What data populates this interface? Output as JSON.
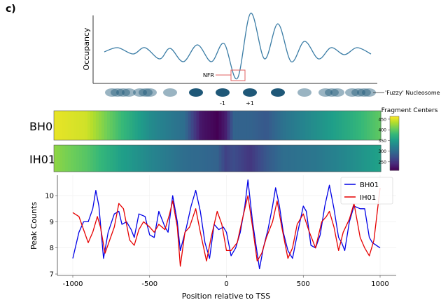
{
  "panel_label": "c)",
  "diagram": {
    "ylabel": "Occupancy",
    "nfr_label": "NFR",
    "minus_one_label": "-1",
    "plus_one_label": "+1",
    "fuzzy_label": "'Fuzzy' Nucleosome",
    "curve_color": "#3a7ca5",
    "nucleosome_color": "#1f5878",
    "nfr_box_color": "#e06060"
  },
  "chart_data": [
    {
      "type": "heatmap",
      "rows": [
        "BH01",
        "IH01"
      ],
      "x": [
        -1000,
        -800,
        -600,
        -400,
        -200,
        -100,
        0,
        50,
        100,
        200,
        300,
        400,
        600,
        800,
        1000
      ],
      "values": [
        [
          455,
          445,
          385,
          330,
          300,
          225,
          210,
          230,
          290,
          290,
          280,
          305,
          335,
          365,
          400
        ],
        [
          420,
          395,
          355,
          325,
          300,
          295,
          290,
          260,
          270,
          250,
          280,
          300,
          310,
          330,
          355
        ]
      ],
      "colormap": "viridis",
      "colorbar": {
        "title": "Fragment Centers",
        "range": [
          210,
          463
        ],
        "ticks": [
          250,
          300,
          350,
          400,
          450
        ]
      }
    },
    {
      "type": "line",
      "xlabel": "Position relative to TSS",
      "ylabel": "Peak Counts",
      "xlim": [
        -1050,
        1050
      ],
      "ylim": [
        7,
        10.75
      ],
      "xticks": [
        -1000,
        -500,
        0,
        500,
        1000
      ],
      "yticks": [
        7,
        8,
        9,
        10
      ],
      "grid": true,
      "legend": "top-right",
      "series": [
        {
          "name": "BH01",
          "color": "#0000e6",
          "points": [
            [
              -1000,
              7.6
            ],
            [
              -960,
              8.6
            ],
            [
              -930,
              9.0
            ],
            [
              -900,
              9.0
            ],
            [
              -870,
              9.5
            ],
            [
              -850,
              10.2
            ],
            [
              -830,
              9.6
            ],
            [
              -800,
              7.6
            ],
            [
              -770,
              8.6
            ],
            [
              -730,
              9.3
            ],
            [
              -700,
              9.4
            ],
            [
              -680,
              8.9
            ],
            [
              -650,
              9.0
            ],
            [
              -620,
              8.7
            ],
            [
              -600,
              8.4
            ],
            [
              -570,
              9.3
            ],
            [
              -530,
              9.2
            ],
            [
              -500,
              8.5
            ],
            [
              -470,
              8.4
            ],
            [
              -440,
              9.4
            ],
            [
              -400,
              8.8
            ],
            [
              -380,
              8.6
            ],
            [
              -350,
              10.0
            ],
            [
              -320,
              9.0
            ],
            [
              -300,
              7.9
            ],
            [
              -260,
              8.8
            ],
            [
              -230,
              9.6
            ],
            [
              -200,
              10.2
            ],
            [
              -170,
              9.4
            ],
            [
              -140,
              8.2
            ],
            [
              -110,
              7.6
            ],
            [
              -80,
              8.9
            ],
            [
              -50,
              8.7
            ],
            [
              -20,
              8.8
            ],
            [
              0,
              8.6
            ],
            [
              30,
              7.7
            ],
            [
              60,
              8.0
            ],
            [
              90,
              8.6
            ],
            [
              120,
              9.6
            ],
            [
              140,
              10.6
            ],
            [
              170,
              9.0
            ],
            [
              200,
              7.8
            ],
            [
              215,
              7.2
            ],
            [
              240,
              8.0
            ],
            [
              270,
              8.7
            ],
            [
              300,
              9.6
            ],
            [
              320,
              10.3
            ],
            [
              345,
              9.6
            ],
            [
              370,
              8.6
            ],
            [
              400,
              7.9
            ],
            [
              430,
              7.6
            ],
            [
              460,
              8.5
            ],
            [
              500,
              9.6
            ],
            [
              520,
              9.4
            ],
            [
              550,
              8.1
            ],
            [
              580,
              8.0
            ],
            [
              610,
              8.5
            ],
            [
              640,
              9.6
            ],
            [
              670,
              10.4
            ],
            [
              700,
              9.5
            ],
            [
              730,
              8.4
            ],
            [
              750,
              8.2
            ],
            [
              770,
              7.9
            ],
            [
              800,
              9.0
            ],
            [
              830,
              9.6
            ],
            [
              870,
              9.5
            ],
            [
              900,
              9.5
            ],
            [
              930,
              8.4
            ],
            [
              950,
              8.2
            ],
            [
              1000,
              8.0
            ]
          ]
        },
        {
          "name": "IH01",
          "color": "#e60000",
          "points": [
            [
              -1000,
              9.35
            ],
            [
              -960,
              9.2
            ],
            [
              -930,
              8.7
            ],
            [
              -900,
              8.2
            ],
            [
              -870,
              8.6
            ],
            [
              -840,
              9.2
            ],
            [
              -820,
              8.8
            ],
            [
              -790,
              7.8
            ],
            [
              -760,
              8.3
            ],
            [
              -730,
              8.8
            ],
            [
              -700,
              9.7
            ],
            [
              -670,
              9.5
            ],
            [
              -630,
              8.3
            ],
            [
              -600,
              8.1
            ],
            [
              -570,
              8.7
            ],
            [
              -540,
              9.0
            ],
            [
              -500,
              8.8
            ],
            [
              -470,
              8.6
            ],
            [
              -440,
              8.9
            ],
            [
              -400,
              8.7
            ],
            [
              -370,
              9.3
            ],
            [
              -350,
              9.8
            ],
            [
              -320,
              8.8
            ],
            [
              -300,
              7.3
            ],
            [
              -270,
              8.6
            ],
            [
              -240,
              8.8
            ],
            [
              -200,
              9.5
            ],
            [
              -170,
              8.6
            ],
            [
              -130,
              7.5
            ],
            [
              -100,
              8.4
            ],
            [
              -60,
              9.4
            ],
            [
              -30,
              8.9
            ],
            [
              0,
              7.9
            ],
            [
              30,
              7.9
            ],
            [
              70,
              8.2
            ],
            [
              100,
              9.0
            ],
            [
              140,
              10.0
            ],
            [
              170,
              8.8
            ],
            [
              200,
              7.5
            ],
            [
              230,
              7.8
            ],
            [
              260,
              8.4
            ],
            [
              300,
              9.0
            ],
            [
              330,
              9.8
            ],
            [
              360,
              8.8
            ],
            [
              400,
              7.6
            ],
            [
              430,
              8.0
            ],
            [
              460,
              8.9
            ],
            [
              500,
              9.3
            ],
            [
              540,
              8.6
            ],
            [
              580,
              8.0
            ],
            [
              620,
              9.0
            ],
            [
              650,
              9.2
            ],
            [
              670,
              9.4
            ],
            [
              700,
              8.8
            ],
            [
              730,
              7.9
            ],
            [
              760,
              8.6
            ],
            [
              800,
              9.1
            ],
            [
              830,
              9.7
            ],
            [
              870,
              8.4
            ],
            [
              900,
              8.0
            ],
            [
              930,
              7.7
            ],
            [
              960,
              8.3
            ],
            [
              1000,
              10.3
            ]
          ]
        }
      ]
    }
  ]
}
